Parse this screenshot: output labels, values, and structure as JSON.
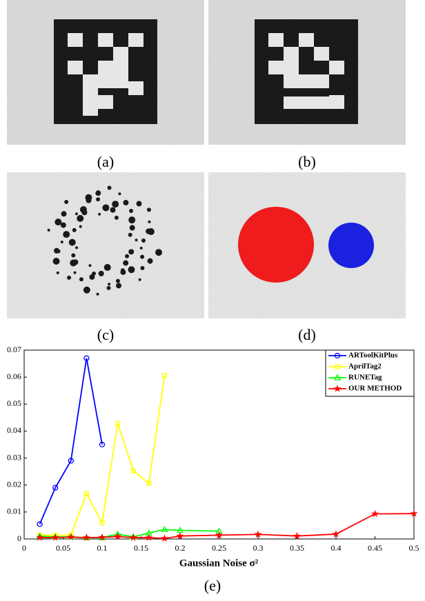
{
  "panels": [
    {
      "label": "(a)"
    },
    {
      "label": "(b)"
    },
    {
      "label": "(c)"
    },
    {
      "label": "(d)"
    }
  ],
  "chart_data": {
    "type": "line",
    "caption": "(e)",
    "xlabel": "Gaussian Noise σ²",
    "xlim": [
      0,
      0.5
    ],
    "xticks": [
      0,
      0.05,
      0.1,
      0.15,
      0.2,
      0.25,
      0.3,
      0.35,
      0.4,
      0.45,
      0.5
    ],
    "ylim": [
      0,
      0.07
    ],
    "yticks": [
      0,
      0.01,
      0.02,
      0.03,
      0.04,
      0.05,
      0.06,
      0.07
    ],
    "legend": "upper right",
    "series": [
      {
        "name": "ARToolKitPlus",
        "color": "#0000ff",
        "marker": "circle",
        "x": [
          0.02,
          0.04,
          0.06,
          0.08,
          0.1
        ],
        "values": [
          0.0055,
          0.019,
          0.029,
          0.067,
          0.035
        ]
      },
      {
        "name": "AprilTag2",
        "color": "#ffff00",
        "marker": "square",
        "x": [
          0.02,
          0.04,
          0.06,
          0.08,
          0.1,
          0.12,
          0.14,
          0.16,
          0.18
        ],
        "values": [
          0.0015,
          0.0013,
          0.0015,
          0.0168,
          0.006,
          0.0428,
          0.0253,
          0.0206,
          0.0605
        ]
      },
      {
        "name": "RUNETag",
        "color": "#00ff00",
        "marker": "triangle",
        "x": [
          0.02,
          0.04,
          0.06,
          0.08,
          0.1,
          0.12,
          0.14,
          0.16,
          0.18,
          0.2,
          0.25
        ],
        "values": [
          0.001,
          0.0008,
          0.0008,
          0.0005,
          0.0005,
          0.0018,
          0.0008,
          0.0022,
          0.0035,
          0.0032,
          0.0029
        ]
      },
      {
        "name": "OUR METHOD",
        "color": "#ff0000",
        "marker": "star",
        "x": [
          0.02,
          0.04,
          0.06,
          0.08,
          0.1,
          0.12,
          0.14,
          0.16,
          0.18,
          0.2,
          0.25,
          0.3,
          0.35,
          0.4,
          0.45,
          0.5
        ],
        "values": [
          0.0005,
          0.0005,
          0.0007,
          0.0005,
          0.0006,
          0.0009,
          0.0005,
          0.0005,
          0.0002,
          0.0011,
          0.0014,
          0.0017,
          0.0011,
          0.0018,
          0.0093,
          0.0094
        ]
      }
    ]
  }
}
